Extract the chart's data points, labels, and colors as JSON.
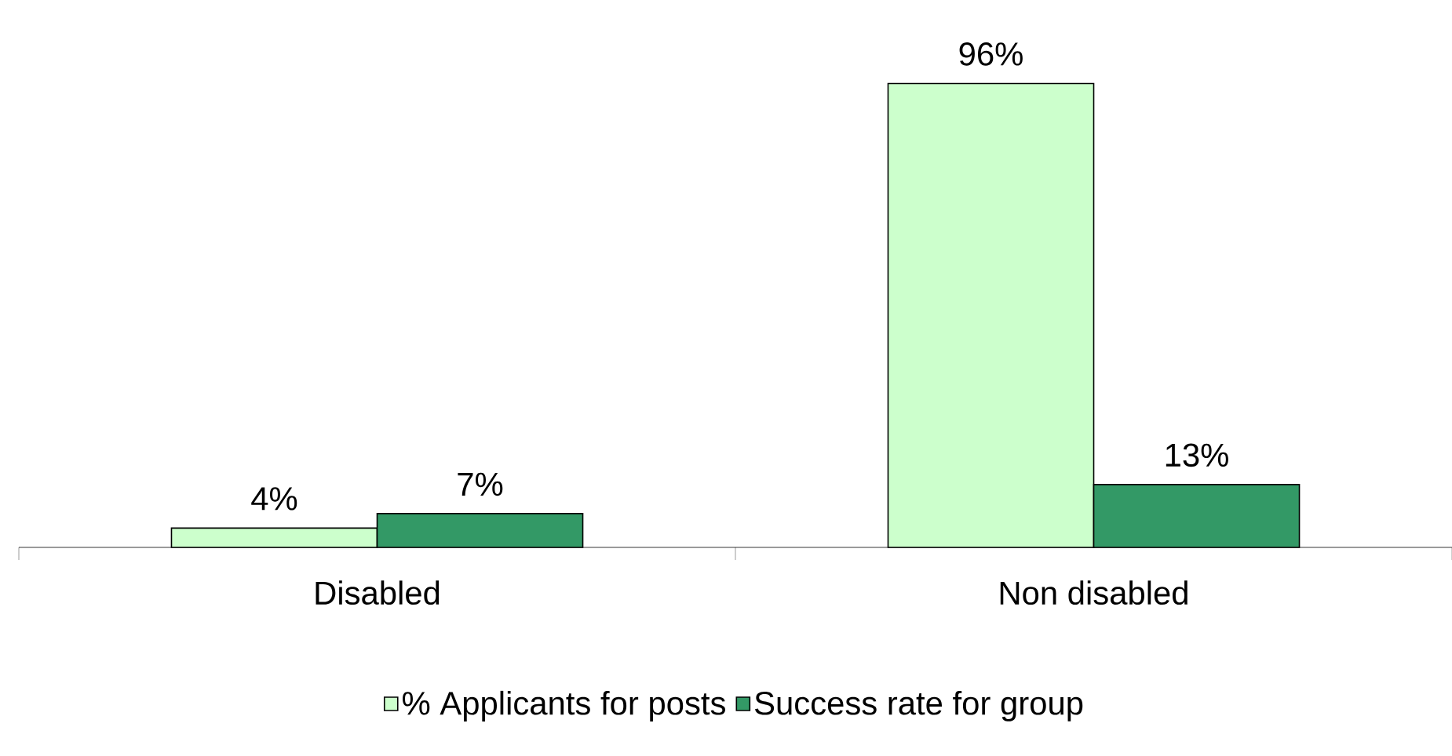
{
  "chart_data": {
    "type": "bar",
    "categories": [
      "Disabled",
      "Non disabled"
    ],
    "series": [
      {
        "name": "% Applicants for posts",
        "color": "#ccffcc",
        "values": [
          4,
          96
        ],
        "value_labels": [
          "4%",
          "96%"
        ]
      },
      {
        "name": "Success rate for group",
        "color": "#339966",
        "values": [
          7,
          13
        ],
        "value_labels": [
          "7%",
          "13%"
        ]
      }
    ],
    "legend": "bottom"
  }
}
